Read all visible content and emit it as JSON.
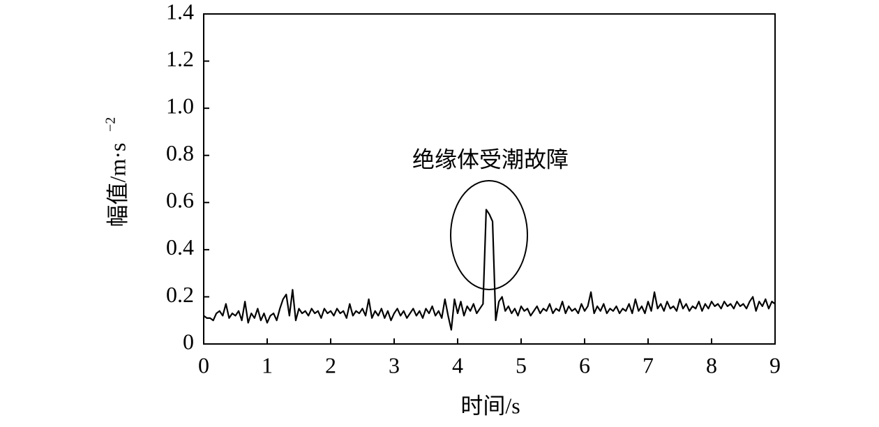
{
  "chart_data": {
    "type": "line",
    "xlabel": "时间/s",
    "ylabel": {
      "text": "幅值/m·s",
      "superscript": "−2"
    },
    "annotation": "绝缘体受潮故障",
    "xlim": [
      0,
      9
    ],
    "xticks": [
      0,
      1,
      2,
      3,
      4,
      5,
      6,
      7,
      8,
      9
    ],
    "ylim": [
      0,
      1.4
    ],
    "yticks": [
      0,
      0.2,
      0.4,
      0.6,
      0.8,
      {
        "value": 1,
        "label": "1.0"
      },
      1.2,
      1.4
    ],
    "series": [
      {
        "color": "#000000",
        "x": [
          0,
          0.05,
          0.1,
          0.15,
          0.2,
          0.25,
          0.3,
          0.35,
          0.4,
          0.45,
          0.5,
          0.55,
          0.6,
          0.65,
          0.7,
          0.75,
          0.8,
          0.85,
          0.9,
          0.95,
          1,
          1.05,
          1.1,
          1.15,
          1.2,
          1.25,
          1.3,
          1.35,
          1.4,
          1.45,
          1.5,
          1.55,
          1.6,
          1.65,
          1.7,
          1.75,
          1.8,
          1.85,
          1.9,
          1.95,
          2,
          2.05,
          2.1,
          2.15,
          2.2,
          2.25,
          2.3,
          2.35,
          2.4,
          2.45,
          2.5,
          2.55,
          2.6,
          2.65,
          2.7,
          2.75,
          2.8,
          2.85,
          2.9,
          2.95,
          3,
          3.05,
          3.1,
          3.15,
          3.2,
          3.25,
          3.3,
          3.35,
          3.4,
          3.45,
          3.5,
          3.55,
          3.6,
          3.65,
          3.7,
          3.75,
          3.8,
          3.85,
          3.9,
          3.95,
          4,
          4.05,
          4.1,
          4.15,
          4.2,
          4.25,
          4.3,
          4.35,
          4.4,
          4.45,
          4.5,
          4.55,
          4.6,
          4.65,
          4.7,
          4.75,
          4.8,
          4.85,
          4.9,
          4.95,
          5,
          5.05,
          5.1,
          5.15,
          5.2,
          5.25,
          5.3,
          5.35,
          5.4,
          5.45,
          5.5,
          5.55,
          5.6,
          5.65,
          5.7,
          5.75,
          5.8,
          5.85,
          5.9,
          5.95,
          6,
          6.05,
          6.1,
          6.15,
          6.2,
          6.25,
          6.3,
          6.35,
          6.4,
          6.45,
          6.5,
          6.55,
          6.6,
          6.65,
          6.7,
          6.75,
          6.8,
          6.85,
          6.9,
          6.95,
          7,
          7.05,
          7.1,
          7.15,
          7.2,
          7.25,
          7.3,
          7.35,
          7.4,
          7.45,
          7.5,
          7.55,
          7.6,
          7.65,
          7.7,
          7.75,
          7.8,
          7.85,
          7.9,
          7.95,
          8,
          8.05,
          8.1,
          8.15,
          8.2,
          8.25,
          8.3,
          8.35,
          8.4,
          8.45,
          8.5,
          8.55,
          8.6,
          8.65,
          8.7,
          8.75,
          8.8,
          8.85,
          8.9,
          8.95,
          9
        ],
        "values": [
          0.12,
          0.11,
          0.11,
          0.1,
          0.13,
          0.14,
          0.12,
          0.17,
          0.11,
          0.13,
          0.12,
          0.14,
          0.1,
          0.18,
          0.09,
          0.13,
          0.11,
          0.15,
          0.1,
          0.13,
          0.09,
          0.12,
          0.13,
          0.1,
          0.15,
          0.19,
          0.21,
          0.12,
          0.23,
          0.1,
          0.15,
          0.13,
          0.14,
          0.12,
          0.15,
          0.13,
          0.14,
          0.11,
          0.15,
          0.13,
          0.14,
          0.12,
          0.15,
          0.13,
          0.14,
          0.11,
          0.17,
          0.12,
          0.14,
          0.13,
          0.15,
          0.12,
          0.19,
          0.11,
          0.14,
          0.12,
          0.15,
          0.11,
          0.14,
          0.1,
          0.13,
          0.15,
          0.12,
          0.14,
          0.11,
          0.13,
          0.15,
          0.12,
          0.14,
          0.11,
          0.15,
          0.13,
          0.16,
          0.12,
          0.14,
          0.11,
          0.19,
          0.12,
          0.06,
          0.19,
          0.13,
          0.18,
          0.12,
          0.16,
          0.14,
          0.17,
          0.13,
          0.15,
          0.17,
          0.57,
          0.55,
          0.52,
          0.1,
          0.18,
          0.2,
          0.14,
          0.16,
          0.13,
          0.15,
          0.12,
          0.16,
          0.14,
          0.15,
          0.12,
          0.14,
          0.16,
          0.13,
          0.15,
          0.14,
          0.17,
          0.13,
          0.15,
          0.14,
          0.18,
          0.13,
          0.16,
          0.14,
          0.15,
          0.13,
          0.17,
          0.14,
          0.16,
          0.22,
          0.13,
          0.16,
          0.14,
          0.17,
          0.13,
          0.15,
          0.14,
          0.16,
          0.13,
          0.15,
          0.14,
          0.17,
          0.13,
          0.19,
          0.14,
          0.16,
          0.13,
          0.18,
          0.14,
          0.22,
          0.15,
          0.17,
          0.14,
          0.18,
          0.15,
          0.16,
          0.14,
          0.19,
          0.15,
          0.17,
          0.14,
          0.16,
          0.15,
          0.18,
          0.14,
          0.17,
          0.15,
          0.18,
          0.16,
          0.17,
          0.15,
          0.18,
          0.16,
          0.17,
          0.15,
          0.18,
          0.16,
          0.17,
          0.15,
          0.18,
          0.2,
          0.14,
          0.18,
          0.16,
          0.19,
          0.15,
          0.18,
          0.17
        ]
      }
    ]
  }
}
